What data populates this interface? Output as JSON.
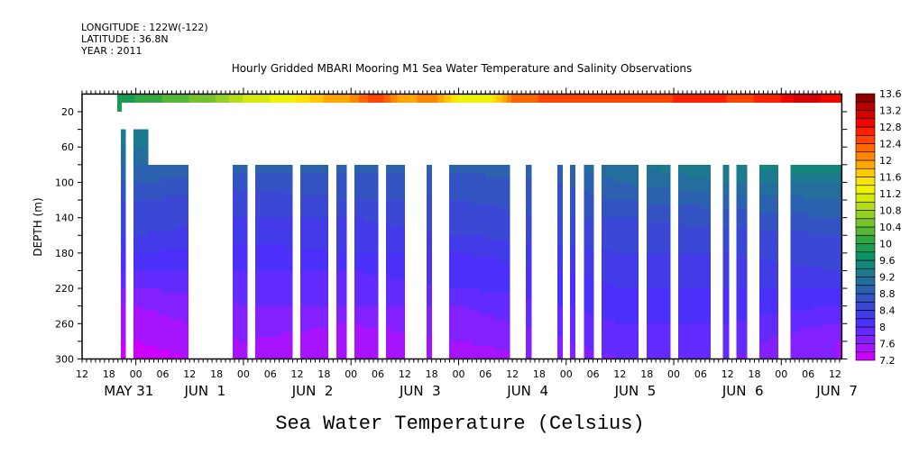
{
  "header": {
    "longitude": "LONGITUDE : 122W(-122)",
    "latitude": "LATITUDE : 36.8N",
    "year": "YEAR : 2011"
  },
  "chart_data": {
    "type": "heatmap",
    "title": "Hourly Gridded MBARI Mooring M1 Sea Water Temperature and Salinity Observations",
    "xlabel": "",
    "ylabel": "DEPTH (m)",
    "bottom_title": "Sea Water Temperature (Celsius)",
    "x_units": "hours since May 31 12:00",
    "xlim": [
      0,
      169.5
    ],
    "ylim": [
      300,
      0
    ],
    "x_tick_labels": [
      "12",
      "18",
      "00",
      "06",
      "12",
      "18",
      "00",
      "06",
      "12",
      "18",
      "00",
      "06",
      "12",
      "18",
      "00",
      "06",
      "12",
      "18",
      "00",
      "06",
      "12",
      "18",
      "00",
      "06",
      "12",
      "18",
      "00",
      "06",
      "12"
    ],
    "date_labels": [
      {
        "text": "MAY 31",
        "hour": 6
      },
      {
        "text": "JUN  1",
        "hour": 23
      },
      {
        "text": "JUN  2",
        "hour": 47
      },
      {
        "text": "JUN  3",
        "hour": 71
      },
      {
        "text": "JUN  4",
        "hour": 95
      },
      {
        "text": "JUN  5",
        "hour": 119
      },
      {
        "text": "JUN  6",
        "hour": 143
      },
      {
        "text": "JUN  7",
        "hour": 164
      }
    ],
    "y_ticks": [
      20,
      60,
      100,
      140,
      180,
      220,
      260,
      300
    ],
    "colorbar": {
      "min": 7.2,
      "max": 13.6,
      "step": 0.2,
      "labels": [
        "13.6",
        "13.2",
        "12.8",
        "12.4",
        "12",
        "11.6",
        "11.2",
        "10.8",
        "10.4",
        "10",
        "9.6",
        "9.2",
        "8.8",
        "8.4",
        "8",
        "7.6",
        "7.2"
      ],
      "stops": [
        "#cc00ff",
        "#9a18ff",
        "#6a28ff",
        "#4a30fa",
        "#4040e0",
        "#3550c8",
        "#2a62ad",
        "#1f7396",
        "#158480",
        "#0a9660",
        "#20a048",
        "#50b438",
        "#7cc42c",
        "#a6d61e",
        "#d2e810",
        "#f4f400",
        "#ffd600",
        "#ffaa00",
        "#ff7e00",
        "#ff5000",
        "#ff2200",
        "#ea0000",
        "#c40000",
        "#8b0000"
      ]
    },
    "surface_layer": {
      "depth_range": [
        0,
        10
      ],
      "hours": [
        12,
        18,
        24,
        30,
        36,
        42,
        48,
        54,
        60,
        66,
        72,
        78,
        84,
        90,
        96,
        102,
        108,
        114,
        120,
        126,
        132,
        138,
        144,
        150,
        156,
        162,
        168
      ],
      "values": [
        10.0,
        10.2,
        10.4,
        10.6,
        11.0,
        11.2,
        11.4,
        11.8,
        12.0,
        12.6,
        11.8,
        12.2,
        11.4,
        11.2,
        12.2,
        12.4,
        12.6,
        12.4,
        12.6,
        12.4,
        12.6,
        12.8,
        12.6,
        12.6,
        12.8,
        13.2,
        12.8
      ],
      "start_hour": 7.8,
      "extension": {
        "hours": [
          7.8,
          8.9
        ],
        "depth_range": [
          10,
          20
        ],
        "value": 10.0
      }
    },
    "profile_depths": [
      40,
      80,
      100,
      120,
      140,
      160,
      180,
      200,
      220,
      240,
      260,
      280,
      300
    ],
    "profiles": [
      {
        "hour": 12,
        "values": [
          9.4,
          9.0,
          8.8,
          8.6,
          8.5,
          8.4,
          8.2,
          8.0,
          7.8,
          7.6,
          7.5,
          7.4,
          7.3
        ]
      },
      {
        "hour": 36,
        "values": [
          9.4,
          8.9,
          8.7,
          8.5,
          8.4,
          8.3,
          8.1,
          8.0,
          7.9,
          7.8,
          7.7,
          7.6,
          7.5
        ]
      },
      {
        "hour": 60,
        "values": [
          9.4,
          8.9,
          8.7,
          8.6,
          8.4,
          8.3,
          8.2,
          8.0,
          7.9,
          7.8,
          7.6,
          7.5,
          7.4
        ]
      },
      {
        "hour": 84,
        "values": [
          9.4,
          8.9,
          8.7,
          8.6,
          8.5,
          8.4,
          8.2,
          8.1,
          8.0,
          7.8,
          7.7,
          7.6,
          7.4
        ]
      },
      {
        "hour": 108,
        "values": [
          9.4,
          9.0,
          8.8,
          8.7,
          8.6,
          8.5,
          8.3,
          8.2,
          8.1,
          8.0,
          7.9,
          7.8,
          7.7
        ]
      },
      {
        "hour": 120,
        "values": [
          9.6,
          9.2,
          9.0,
          8.8,
          8.6,
          8.5,
          8.4,
          8.3,
          8.2,
          8.1,
          8.0,
          7.9,
          7.8
        ]
      },
      {
        "hour": 144,
        "values": [
          9.6,
          9.4,
          9.2,
          8.9,
          8.7,
          8.5,
          8.4,
          8.3,
          8.2,
          8.1,
          8.0,
          7.9,
          7.8
        ]
      },
      {
        "hour": 168,
        "values": [
          9.8,
          9.6,
          9.2,
          9.0,
          8.8,
          8.6,
          8.5,
          8.4,
          8.2,
          8.0,
          7.8,
          7.6,
          7.6
        ]
      }
    ],
    "data_segments": [
      {
        "start": 8.7,
        "end": 9.7,
        "top_depth": 40
      },
      {
        "start": 11.5,
        "end": 14.7,
        "top_depth": 40
      },
      {
        "start": 14.7,
        "end": 23.7,
        "top_depth": 80
      },
      {
        "start": 33.6,
        "end": 36.8,
        "top_depth": 80
      },
      {
        "start": 38.6,
        "end": 46.9,
        "top_depth": 80
      },
      {
        "start": 48.7,
        "end": 54.9,
        "top_depth": 80
      },
      {
        "start": 56.7,
        "end": 59.0,
        "top_depth": 80
      },
      {
        "start": 60.8,
        "end": 66.0,
        "top_depth": 80
      },
      {
        "start": 67.8,
        "end": 72.0,
        "top_depth": 80
      },
      {
        "start": 76.9,
        "end": 78.0,
        "top_depth": 80
      },
      {
        "start": 81.9,
        "end": 95.4,
        "top_depth": 80
      },
      {
        "start": 99.0,
        "end": 100.2,
        "top_depth": 80
      },
      {
        "start": 106.0,
        "end": 107.2,
        "top_depth": 80
      },
      {
        "start": 108.9,
        "end": 110.0,
        "top_depth": 80
      },
      {
        "start": 112.0,
        "end": 114.1,
        "top_depth": 80
      },
      {
        "start": 115.9,
        "end": 124.1,
        "top_depth": 80
      },
      {
        "start": 126.0,
        "end": 131.2,
        "top_depth": 80
      },
      {
        "start": 133.0,
        "end": 140.2,
        "top_depth": 80
      },
      {
        "start": 143.0,
        "end": 144.3,
        "top_depth": 80
      },
      {
        "start": 146.0,
        "end": 148.3,
        "top_depth": 80
      },
      {
        "start": 151.1,
        "end": 155.3,
        "top_depth": 80
      },
      {
        "start": 158.1,
        "end": 169.5,
        "top_depth": 80
      }
    ]
  }
}
